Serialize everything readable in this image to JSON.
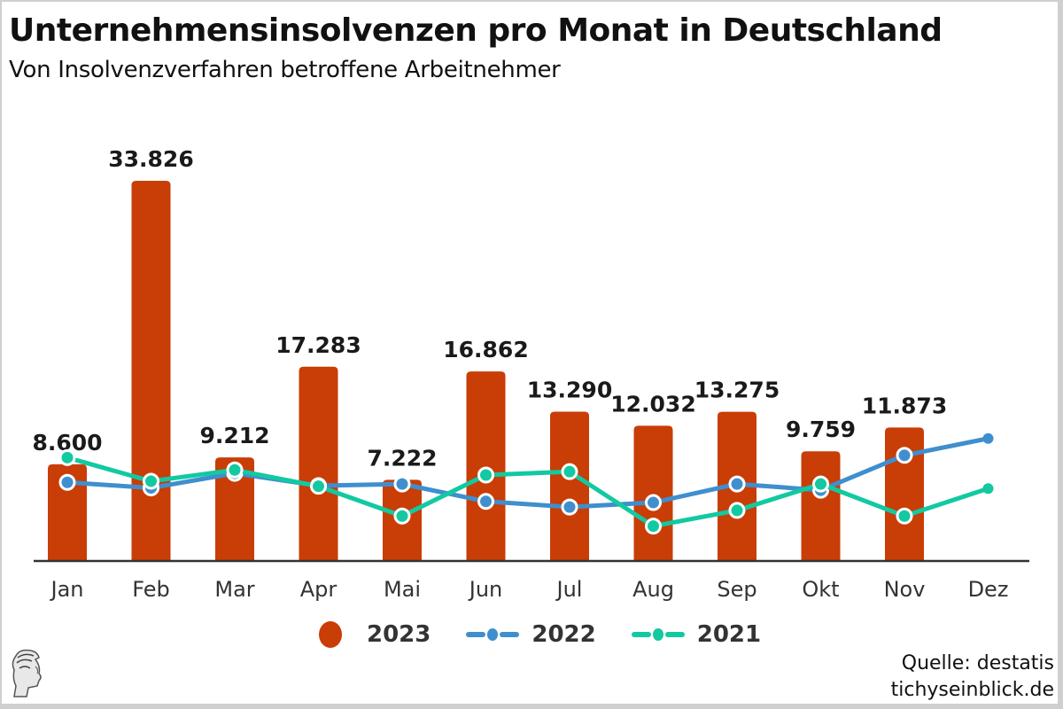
{
  "header": {
    "title": "Unternehmensinsolvenzen pro Monat in Deutschland",
    "subtitle": "Von Insolvenzverfahren betroffene Arbeitnehmer"
  },
  "chart_data": {
    "type": "bar",
    "title": "Unternehmensinsolvenzen pro Monat in Deutschland",
    "subtitle": "Von Insolvenzverfahren betroffene Arbeitnehmer",
    "xlabel": "",
    "ylabel": "",
    "ylim": [
      0,
      34000
    ],
    "grid": false,
    "legend_position": "bottom-center",
    "categories": [
      "Jan",
      "Feb",
      "Mar",
      "Apr",
      "Mai",
      "Jun",
      "Jul",
      "Aug",
      "Sep",
      "Okt",
      "Nov",
      "Dez"
    ],
    "series": [
      {
        "name": "2023",
        "type": "bar",
        "color": "#c93d06",
        "values": [
          8600,
          33826,
          9212,
          17283,
          7222,
          16862,
          13290,
          12032,
          13275,
          9759,
          11873,
          null
        ],
        "labels": [
          "8.600",
          "33.826",
          "9.212",
          "17.283",
          "7.222",
          "16.862",
          "13.290",
          "12.032",
          "13.275",
          "9.759",
          "11.873",
          ""
        ]
      },
      {
        "name": "2022",
        "type": "line",
        "color": "#3f8fce",
        "values": [
          7000,
          6500,
          7800,
          6700,
          6850,
          5300,
          4800,
          5200,
          6850,
          6300,
          9400,
          10900
        ]
      },
      {
        "name": "2021",
        "type": "line",
        "color": "#12c9a1",
        "values": [
          9200,
          7100,
          8100,
          6650,
          4000,
          7650,
          7950,
          3100,
          4500,
          6850,
          4000,
          6450
        ]
      }
    ]
  },
  "legend": {
    "items": [
      {
        "label": "2023",
        "color": "#c93d06",
        "kind": "bar"
      },
      {
        "label": "2022",
        "color": "#3f8fce",
        "kind": "line"
      },
      {
        "label": "2021",
        "color": "#12c9a1",
        "kind": "line"
      }
    ]
  },
  "footer": {
    "source": "Quelle: destatis",
    "site": "tichyseinblick.de",
    "logo_icon": "hermes-head-logo-icon"
  }
}
